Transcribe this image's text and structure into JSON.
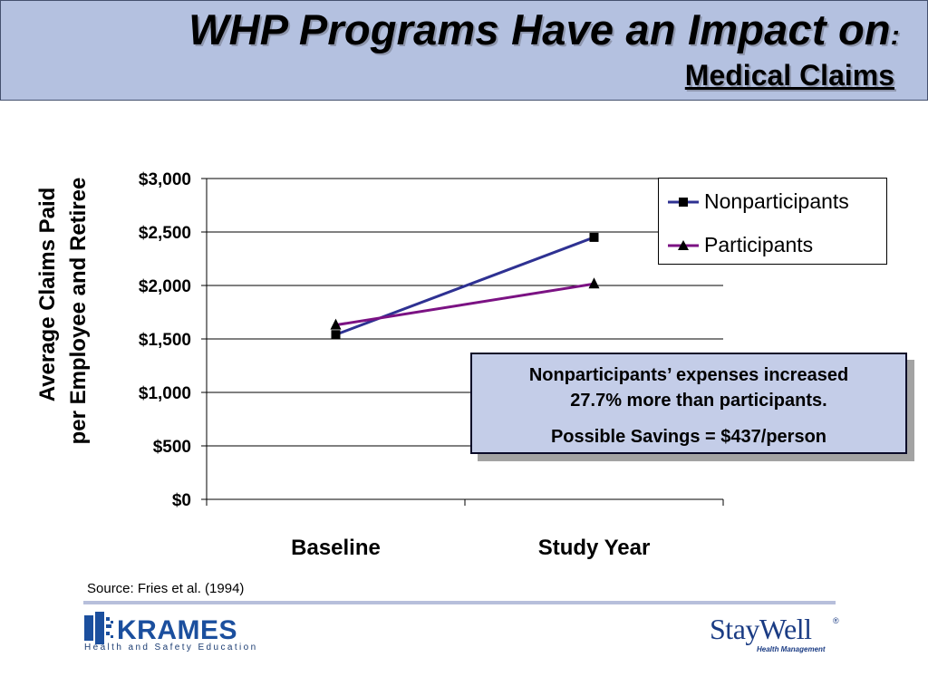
{
  "header": {
    "title": "WHP Programs Have an Impact on",
    "title_colon": ":",
    "subtitle": "Medical Claims"
  },
  "chart_data": {
    "type": "line",
    "categories": [
      "Baseline",
      "Study Year"
    ],
    "series": [
      {
        "name": "Nonparticipants",
        "values": [
          1540,
          2450
        ],
        "color": "#2e3192",
        "marker": "square"
      },
      {
        "name": "Participants",
        "values": [
          1630,
          2015
        ],
        "color": "#7b1283",
        "marker": "triangle"
      }
    ],
    "ylabel": [
      "Average Claims Paid",
      "per Employee and Retiree"
    ],
    "xlabel": "",
    "ylim": [
      0,
      3000
    ],
    "yticks": [
      0,
      500,
      1000,
      1500,
      2000,
      2500,
      3000
    ],
    "ytick_labels": [
      "$0",
      "$500",
      "$1,000",
      "$1,500",
      "$2,000",
      "$2,500",
      "$3,000"
    ],
    "grid": true,
    "legend": "top-right"
  },
  "callout": {
    "line1": "Nonparticipants’ expenses increased",
    "line2": "27.7% more than participants.",
    "line3": "Possible Savings = $437/person"
  },
  "footer": {
    "source": "Source: Fries et al. (1994)",
    "krames_logo": "KRAMES",
    "krames_tagline": "Health and Safety Education",
    "staywell_logo": "StayWell",
    "staywell_reg": "®",
    "staywell_tagline": "Health Management"
  }
}
